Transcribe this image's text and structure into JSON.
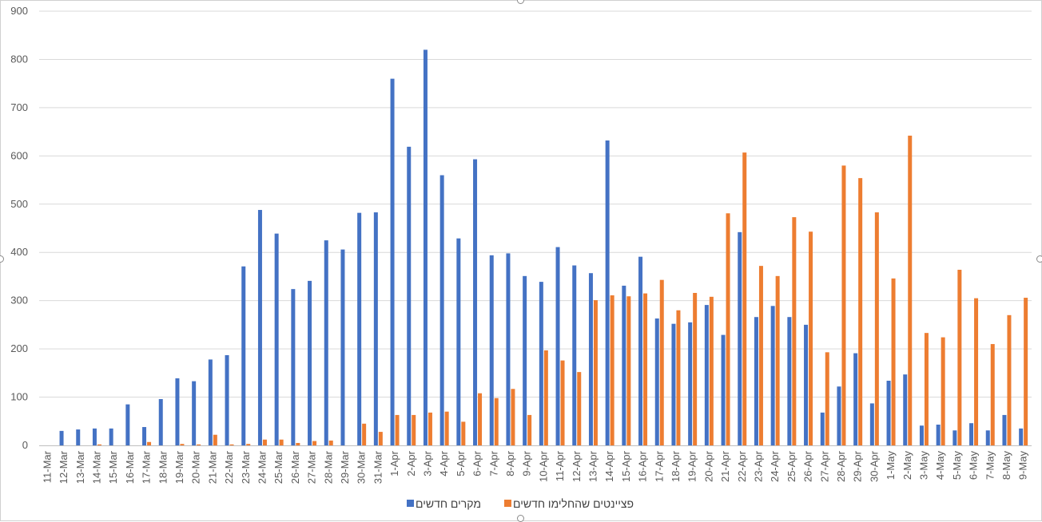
{
  "chart_data": {
    "type": "bar",
    "title": "",
    "xlabel": "",
    "ylabel": "",
    "ylim": [
      0,
      900
    ],
    "yticks": [
      0,
      100,
      200,
      300,
      400,
      500,
      600,
      700,
      800,
      900
    ],
    "grid": true,
    "legend_position": "bottom",
    "categories": [
      "11-Mar",
      "12-Mar",
      "13-Mar",
      "14-Mar",
      "15-Mar",
      "16-Mar",
      "17-Mar",
      "18-Mar",
      "19-Mar",
      "20-Mar",
      "21-Mar",
      "22-Mar",
      "23-Mar",
      "24-Mar",
      "25-Mar",
      "26-Mar",
      "27-Mar",
      "28-Mar",
      "29-Mar",
      "30-Mar",
      "31-Mar",
      "1-Apr",
      "2-Apr",
      "3-Apr",
      "4-Apr",
      "5-Apr",
      "6-Apr",
      "7-Apr",
      "8-Apr",
      "9-Apr",
      "10-Apr",
      "11-Apr",
      "12-Apr",
      "13-Apr",
      "14-Apr",
      "15-Apr",
      "16-Apr",
      "17-Apr",
      "18-Apr",
      "19-Apr",
      "20-Apr",
      "21-Apr",
      "22-Apr",
      "23-Apr",
      "24-Apr",
      "25-Apr",
      "26-Apr",
      "27-Apr",
      "28-Apr",
      "29-Apr",
      "30-Apr",
      "1-May",
      "2-May",
      "3-May",
      "4-May",
      "5-May",
      "6-May",
      "7-May",
      "8-May",
      "9-May"
    ],
    "series": [
      {
        "name": "מקרים חדשים",
        "color": "#4472C4",
        "values": [
          0,
          30,
          33,
          35,
          35,
          85,
          38,
          96,
          139,
          133,
          178,
          187,
          371,
          488,
          439,
          324,
          341,
          425,
          406,
          482,
          483,
          760,
          619,
          820,
          560,
          429,
          593,
          394,
          398,
          351,
          339,
          411,
          373,
          357,
          632,
          331,
          391,
          263,
          252,
          255,
          291,
          229,
          442,
          266,
          289,
          266,
          250,
          68,
          122,
          191,
          87,
          134,
          147,
          41,
          43,
          31,
          46,
          31,
          63,
          35
        ]
      },
      {
        "name": "פציינטים שהחלימו חדשים",
        "color": "#ED7D31",
        "values": [
          0,
          0,
          0,
          2,
          0,
          0,
          7,
          0,
          3,
          2,
          22,
          2,
          3,
          12,
          12,
          5,
          9,
          10,
          0,
          45,
          28,
          63,
          63,
          68,
          70,
          49,
          108,
          98,
          117,
          63,
          197,
          176,
          152,
          301,
          311,
          309,
          315,
          343,
          280,
          316,
          308,
          481,
          607,
          372,
          351,
          473,
          443,
          193,
          580,
          554,
          483,
          346,
          642,
          233,
          224,
          364,
          305,
          210,
          270,
          306
        ]
      }
    ]
  }
}
